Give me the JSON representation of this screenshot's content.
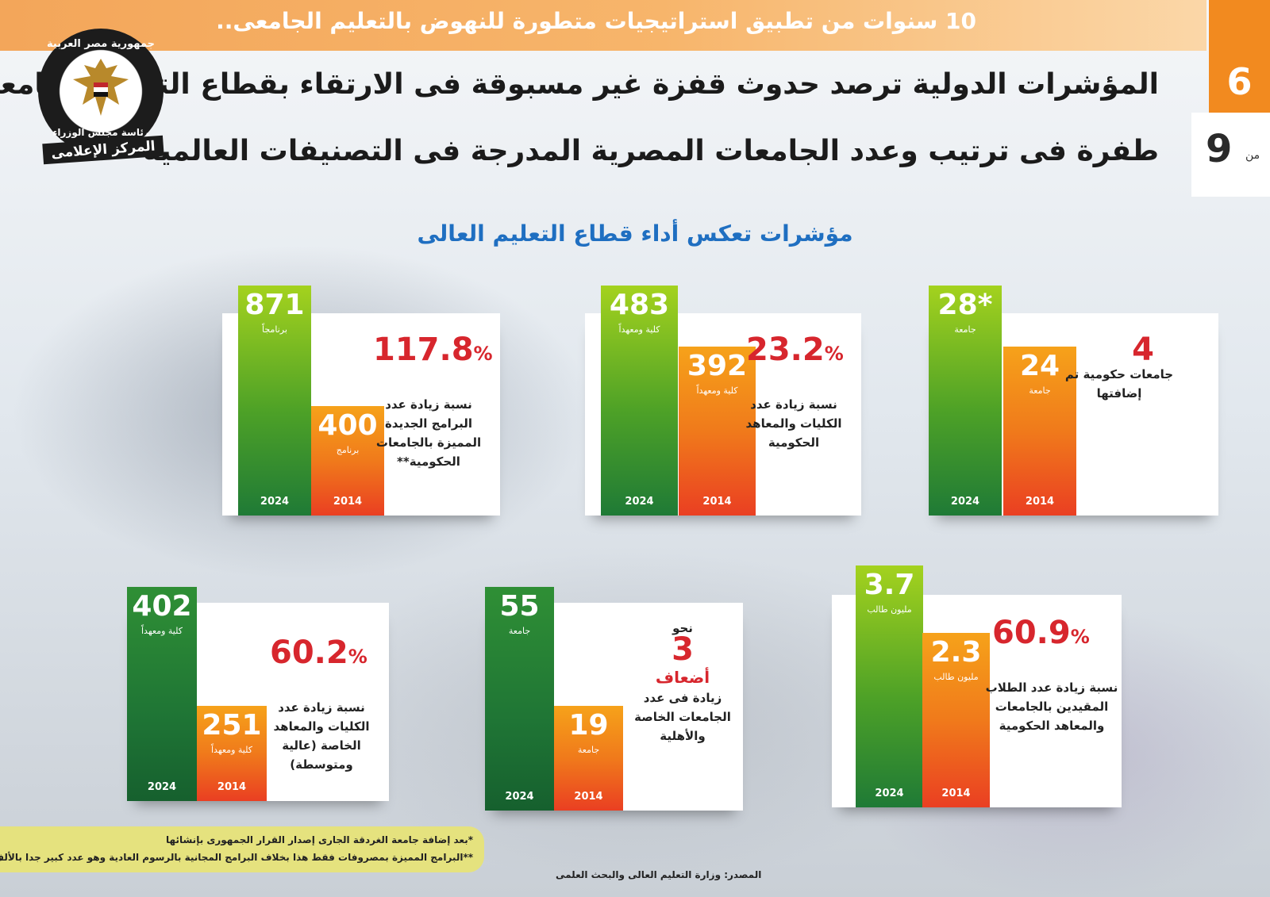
{
  "header": {
    "banner": "10 سنوات من تطبيق استراتيجيات متطورة للنهوض بالتعليم الجامعى..",
    "headline_line1": "المؤشرات الدولية ترصد حدوث قفزة غير مسبوقة فى الارتقاء بقطاع التعليم الجامعى",
    "headline_line2": "طفرة فى ترتيب وعدد الجامعات المصرية المدرجة فى التصنيفات العالمية",
    "page_current": "6",
    "page_of": "من",
    "page_total": "9"
  },
  "logo": {
    "top_text": "جمهورية مصر العربية",
    "middle_text": "رئاسة مجلس الوزراء",
    "bottom_text": "المركز الإعلامى"
  },
  "subtitle": "مؤشرات تعكس أداء قطاع التعليم العالى",
  "colors": {
    "bar_2024": "#4da127",
    "bar_2014": "#f07a1b",
    "percent": "#d7262d",
    "subtitle": "#1f6fc1",
    "banner": "#f3a65a"
  },
  "chart_data": [
    {
      "type": "bar",
      "categories": [
        "2024",
        "2014"
      ],
      "values": [
        28,
        24
      ],
      "value_labels": [
        "28*",
        "24"
      ],
      "units": [
        "جامعة",
        "جامعة"
      ],
      "highlight": "4",
      "description": "جامعات حكومية تم إضافتها"
    },
    {
      "type": "bar",
      "categories": [
        "2024",
        "2014"
      ],
      "values": [
        483,
        392
      ],
      "value_labels": [
        "483",
        "392"
      ],
      "units": [
        "كلية ومعهداً",
        "كلية ومعهداً"
      ],
      "percent": "23.2",
      "description": "نسبة زيادة عدد الكليات والمعاهد الحكومية"
    },
    {
      "type": "bar",
      "categories": [
        "2024",
        "2014"
      ],
      "values": [
        871,
        400
      ],
      "value_labels": [
        "871",
        "400"
      ],
      "units": [
        "برنامجاً",
        "برنامج"
      ],
      "percent": "117.8",
      "description": "نسبة زيادة عدد البرامج الجديدة المميزة بالجامعات الحكومية**"
    },
    {
      "type": "bar",
      "categories": [
        "2024",
        "2014"
      ],
      "values": [
        3.7,
        2.3
      ],
      "value_labels": [
        "3.7",
        "2.3"
      ],
      "units": [
        "مليون طالب",
        "مليون طالب"
      ],
      "percent": "60.9",
      "description": "نسبة زيادة عدد الطلاب المقيدين بالجامعات والمعاهد الحكومية"
    },
    {
      "type": "bar",
      "categories": [
        "2024",
        "2014"
      ],
      "values": [
        55,
        19
      ],
      "value_labels": [
        "55",
        "19"
      ],
      "units": [
        "جامعة",
        "جامعة"
      ],
      "prefix": "نحو",
      "highlight": "3",
      "highlight_word": "أضعاف",
      "description": "زيادة فى عدد الجامعات الخاصة والأهلية"
    },
    {
      "type": "bar",
      "categories": [
        "2024",
        "2014"
      ],
      "values": [
        402,
        251
      ],
      "value_labels": [
        "402",
        "251"
      ],
      "units": [
        "كلية ومعهداً",
        "كلية ومعهداً"
      ],
      "percent": "60.2",
      "description": "نسبة زيادة عدد الكليات والمعاهد الخاصة (عالية ومتوسطة)"
    }
  ],
  "percent_sign": "%",
  "notes": [
    "*بعد إضافة جامعة الغردقة الجارى إصدار القرار الجمهورى بإنشائها",
    "**البرامج المميزة بمصروفات فقط هذا بخلاف البرامج المجانية بالرسوم العادية وهو عدد كبير جدا بالألف"
  ],
  "source": "المصدر: وزارة التعليم العالى والبحث العلمى"
}
